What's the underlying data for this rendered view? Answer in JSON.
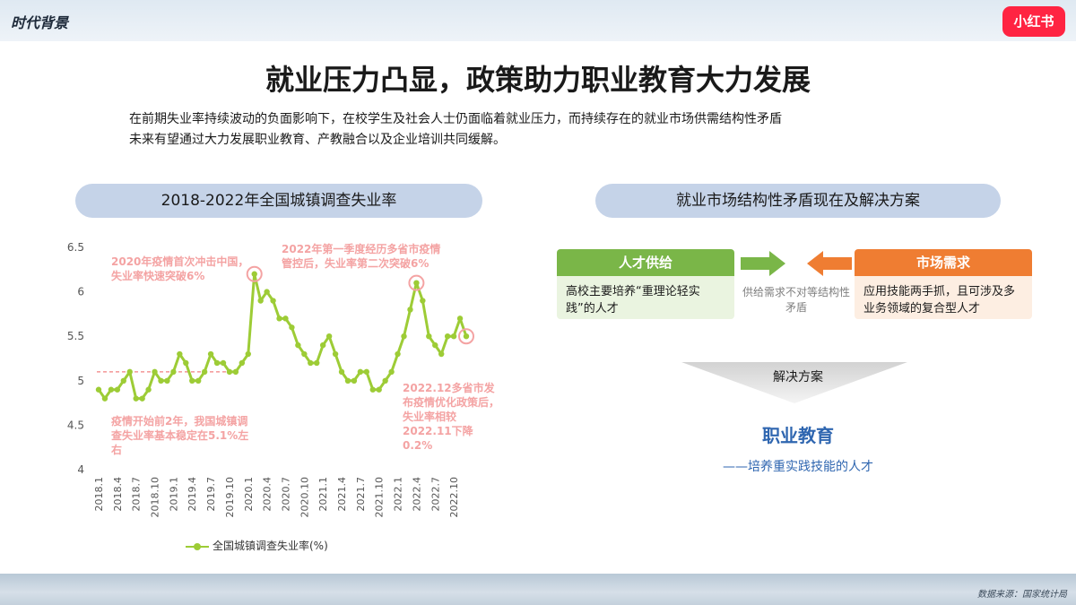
{
  "header": {
    "section_tag": "时代背景",
    "brand": "小红书"
  },
  "title": "就业压力凸显，政策助力职业教育大力发展",
  "subtitle_lines": [
    "在前期失业率持续波动的负面影响下，在校学生及社会人士仍面临着就业压力，而持续存在的就业市场供需结构性矛盾",
    "未来有望通过大力发展职业教育、产教融合以及企业培训共同缓解。"
  ],
  "left_panel_title": "2018-2022年全国城镇调查失业率",
  "right_panel_title": "就业市场结构性矛盾现在及解决方案",
  "chart_data": {
    "type": "line",
    "title": "2018-2022年全国城镇调查失业率",
    "xlabel": "",
    "ylabel": "",
    "ylim": [
      4,
      6.5
    ],
    "yticks": [
      "4",
      "4.5",
      "5",
      "5.5",
      "6",
      "6.5"
    ],
    "x_tick_labels": [
      "2018.1",
      "2018.4",
      "2018.7",
      "2018.10",
      "2019.1",
      "2019.4",
      "2019.7",
      "2019.10",
      "2020.1",
      "2020.4",
      "2020.7",
      "2020.10",
      "2021.1",
      "2021.4",
      "2021.7",
      "2021.10",
      "2022.1",
      "2022.4",
      "2022.7",
      "2022.10"
    ],
    "reference_line": 5.1,
    "series": [
      {
        "name": "全国城镇调查失业率(%)",
        "color": "#9dcc36",
        "x": [
          "2018.1",
          "2018.2",
          "2018.3",
          "2018.4",
          "2018.5",
          "2018.6",
          "2018.7",
          "2018.8",
          "2018.9",
          "2018.10",
          "2018.11",
          "2018.12",
          "2019.1",
          "2019.2",
          "2019.3",
          "2019.4",
          "2019.5",
          "2019.6",
          "2019.7",
          "2019.8",
          "2019.9",
          "2019.10",
          "2019.11",
          "2019.12",
          "2020.1",
          "2020.2",
          "2020.3",
          "2020.4",
          "2020.5",
          "2020.6",
          "2020.7",
          "2020.8",
          "2020.9",
          "2020.10",
          "2020.11",
          "2020.12",
          "2021.1",
          "2021.2",
          "2021.3",
          "2021.4",
          "2021.5",
          "2021.6",
          "2021.7",
          "2021.8",
          "2021.9",
          "2021.10",
          "2021.11",
          "2021.12",
          "2022.1",
          "2022.2",
          "2022.3",
          "2022.4",
          "2022.5",
          "2022.6",
          "2022.7",
          "2022.8",
          "2022.9",
          "2022.10",
          "2022.11",
          "2022.12"
        ],
        "values": [
          4.9,
          4.8,
          4.9,
          4.9,
          5.0,
          5.1,
          4.8,
          4.8,
          4.9,
          5.1,
          5.0,
          5.0,
          5.1,
          5.3,
          5.2,
          5.0,
          5.0,
          5.1,
          5.3,
          5.2,
          5.2,
          5.1,
          5.1,
          5.2,
          5.3,
          6.2,
          5.9,
          6.0,
          5.9,
          5.7,
          5.7,
          5.6,
          5.4,
          5.3,
          5.2,
          5.2,
          5.4,
          5.5,
          5.3,
          5.1,
          5.0,
          5.0,
          5.1,
          5.1,
          4.9,
          4.9,
          5.0,
          5.1,
          5.3,
          5.5,
          5.8,
          6.1,
          5.9,
          5.5,
          5.4,
          5.3,
          5.5,
          5.5,
          5.7,
          5.5
        ]
      }
    ],
    "highlights": [
      "2020.2",
      "2022.4",
      "2022.12"
    ],
    "legend": "bottom",
    "grid": false
  },
  "annotations": {
    "a1": "2020年疫情首次冲击中国，失业率快速突破6%",
    "a2": "2022年第一季度经历多省市疫情管控后，失业率第二次突破6%",
    "a3": "疫情开始前2年，我国城镇调查失业率基本稳定在5.1%左右",
    "a4": "2022.12多省市发布疫情优化政策后，失业率相较2022.11下降0.2%"
  },
  "right": {
    "supply_title": "人才供给",
    "supply_text": "高校主要培养“重理论轻实践”的人才",
    "demand_title": "市场需求",
    "demand_text": "应用技能两手抓，且可涉及多业务领域的复合型人才",
    "conflict": "供给需求不对等结构性矛盾",
    "solution_label": "解决方案",
    "answer": "职业教育",
    "answer_sub": "——培养重实践技能的人才",
    "supply_color": "#7ab648",
    "demand_color": "#ef7d32"
  },
  "source": "数据来源：国家统计局"
}
